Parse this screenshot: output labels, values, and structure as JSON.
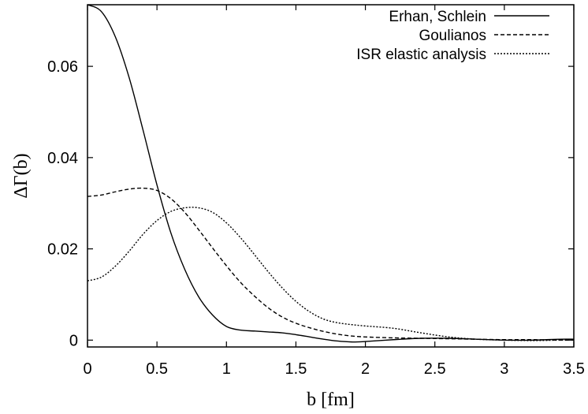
{
  "chart_data": {
    "type": "line",
    "title": "",
    "xlabel": "b [fm]",
    "ylabel": "ΔΓ(b)",
    "xlim": [
      0,
      3.5
    ],
    "ylim": [
      -0.0015,
      0.0735
    ],
    "xticks": [
      {
        "value": 0,
        "label": "0"
      },
      {
        "value": 0.5,
        "label": "0.5"
      },
      {
        "value": 1,
        "label": "1"
      },
      {
        "value": 1.5,
        "label": "1.5"
      },
      {
        "value": 2,
        "label": "2"
      },
      {
        "value": 2.5,
        "label": "2.5"
      },
      {
        "value": 3,
        "label": "3"
      },
      {
        "value": 3.5,
        "label": "3.5"
      }
    ],
    "yticks": [
      {
        "value": 0,
        "label": "0"
      },
      {
        "value": 0.02,
        "label": "0.02"
      },
      {
        "value": 0.04,
        "label": "0.04"
      },
      {
        "value": 0.06,
        "label": "0.06"
      }
    ],
    "grid": false,
    "legend_position": "top-right",
    "series": [
      {
        "name": "Erhan, Schlein",
        "dash": "solid",
        "color": "#000000",
        "x": [
          0,
          0.1,
          0.2,
          0.3,
          0.4,
          0.5,
          0.6,
          0.7,
          0.8,
          0.9,
          1.0,
          1.1,
          1.2,
          1.3,
          1.4,
          1.5,
          1.6,
          1.7,
          1.8,
          1.9,
          2.0,
          2.2,
          2.4,
          2.6,
          2.8,
          3.0,
          3.2,
          3.4,
          3.5
        ],
        "y": [
          0.0735,
          0.072,
          0.0665,
          0.0575,
          0.046,
          0.034,
          0.0235,
          0.0155,
          0.0095,
          0.0055,
          0.003,
          0.0022,
          0.002,
          0.0018,
          0.0016,
          0.0012,
          0.0007,
          0.0002,
          -0.0002,
          -0.0004,
          -0.0003,
          0.0001,
          0.0004,
          0.0004,
          0.0002,
          0.0,
          0.0,
          0.0002,
          0.0002
        ]
      },
      {
        "name": "Goulianos",
        "dash": "dashed",
        "color": "#000000",
        "x": [
          0,
          0.1,
          0.2,
          0.3,
          0.4,
          0.5,
          0.6,
          0.7,
          0.8,
          0.9,
          1.0,
          1.1,
          1.2,
          1.3,
          1.4,
          1.5,
          1.6,
          1.7,
          1.8,
          1.9,
          2.0,
          2.2,
          2.4,
          2.6,
          2.8,
          3.0,
          3.2,
          3.4,
          3.5
        ],
        "y": [
          0.0315,
          0.0318,
          0.0325,
          0.0331,
          0.0333,
          0.0328,
          0.031,
          0.028,
          0.0242,
          0.0202,
          0.0163,
          0.0127,
          0.0097,
          0.0071,
          0.0051,
          0.0037,
          0.0027,
          0.0019,
          0.0013,
          0.0009,
          0.0007,
          0.0005,
          0.0004,
          0.0003,
          0.0002,
          0.0001,
          0.0001,
          0.0,
          0.0
        ]
      },
      {
        "name": "ISR elastic analysis",
        "dash": "dotted",
        "color": "#000000",
        "x": [
          0,
          0.1,
          0.2,
          0.3,
          0.4,
          0.5,
          0.6,
          0.7,
          0.8,
          0.9,
          1.0,
          1.1,
          1.2,
          1.3,
          1.4,
          1.5,
          1.6,
          1.7,
          1.8,
          1.9,
          2.0,
          2.2,
          2.4,
          2.6,
          2.8,
          3.0,
          3.2,
          3.4,
          3.5
        ],
        "y": [
          0.013,
          0.0138,
          0.0162,
          0.0195,
          0.0232,
          0.0262,
          0.0282,
          0.029,
          0.029,
          0.028,
          0.0257,
          0.0225,
          0.0188,
          0.015,
          0.0115,
          0.0085,
          0.0062,
          0.0046,
          0.0038,
          0.0034,
          0.0031,
          0.0026,
          0.0016,
          0.0007,
          0.0002,
          0.0,
          -0.0001,
          0.0,
          0.0
        ]
      }
    ]
  }
}
